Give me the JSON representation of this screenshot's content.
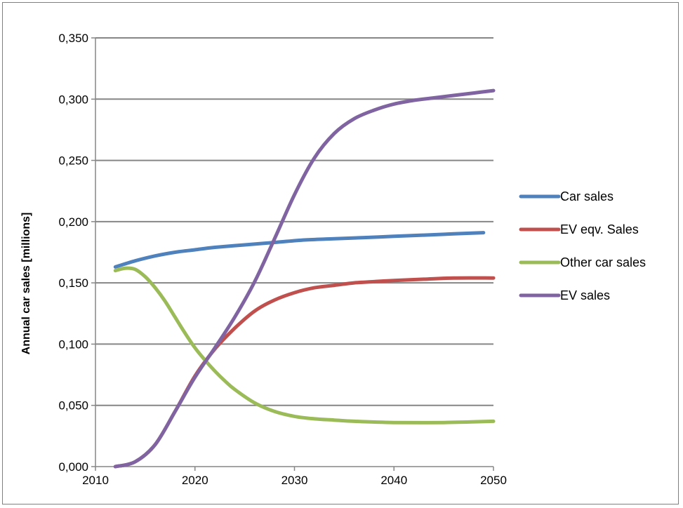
{
  "chart_data": {
    "type": "line",
    "title": "",
    "xlabel": "",
    "ylabel": "Annual car sales  [millions]",
    "xlim": [
      2010,
      2050
    ],
    "ylim": [
      0,
      0.35
    ],
    "xticks": [
      2010,
      2020,
      2030,
      2040,
      2050
    ],
    "xtick_labels": [
      "2010",
      "2020",
      "2030",
      "2040",
      "2050"
    ],
    "yticks": [
      0,
      0.05,
      0.1,
      0.15,
      0.2,
      0.25,
      0.3,
      0.35
    ],
    "ytick_labels": [
      "0,000",
      "0,050",
      "0,100",
      "0,150",
      "0,200",
      "0,250",
      "0,300",
      "0,350"
    ],
    "grid": "horizontal",
    "legend_position": "right",
    "series": [
      {
        "name": "Car sales",
        "color": "#4f81bd",
        "x": [
          2012,
          2014,
          2016,
          2018,
          2020,
          2022,
          2025,
          2028,
          2031,
          2034,
          2037,
          2040,
          2043,
          2046,
          2049
        ],
        "y": [
          0.163,
          0.168,
          0.172,
          0.175,
          0.177,
          0.179,
          0.181,
          0.183,
          0.185,
          0.186,
          0.187,
          0.188,
          0.189,
          0.19,
          0.191
        ]
      },
      {
        "name": "EV eqv. Sales",
        "color": "#c0504d",
        "x": [
          2012,
          2014,
          2016,
          2018,
          2020,
          2022,
          2024,
          2026,
          2028,
          2030,
          2032,
          2034,
          2036,
          2038,
          2040,
          2043,
          2046,
          2050
        ],
        "y": [
          0.0,
          0.004,
          0.018,
          0.045,
          0.074,
          0.096,
          0.113,
          0.127,
          0.136,
          0.142,
          0.146,
          0.148,
          0.15,
          0.151,
          0.152,
          0.153,
          0.154,
          0.154
        ]
      },
      {
        "name": "Other car sales",
        "color": "#9bbb59",
        "x": [
          2012,
          2013,
          2014,
          2015,
          2016,
          2017,
          2018,
          2019,
          2020,
          2021,
          2022,
          2023,
          2024,
          2026,
          2028,
          2030,
          2032,
          2034,
          2036,
          2040,
          2045,
          2050
        ],
        "y": [
          0.16,
          0.162,
          0.161,
          0.155,
          0.146,
          0.135,
          0.122,
          0.109,
          0.097,
          0.087,
          0.078,
          0.07,
          0.063,
          0.052,
          0.045,
          0.041,
          0.039,
          0.038,
          0.037,
          0.036,
          0.036,
          0.037
        ]
      },
      {
        "name": "EV sales",
        "color": "#8064a2",
        "x": [
          2012,
          2014,
          2016,
          2018,
          2020,
          2022,
          2024,
          2026,
          2028,
          2030,
          2032,
          2034,
          2036,
          2038,
          2040,
          2042,
          2044,
          2046,
          2048,
          2050
        ],
        "y": [
          0.0,
          0.004,
          0.018,
          0.045,
          0.073,
          0.097,
          0.122,
          0.151,
          0.186,
          0.222,
          0.252,
          0.272,
          0.284,
          0.291,
          0.296,
          0.299,
          0.301,
          0.303,
          0.305,
          0.307
        ]
      }
    ]
  }
}
